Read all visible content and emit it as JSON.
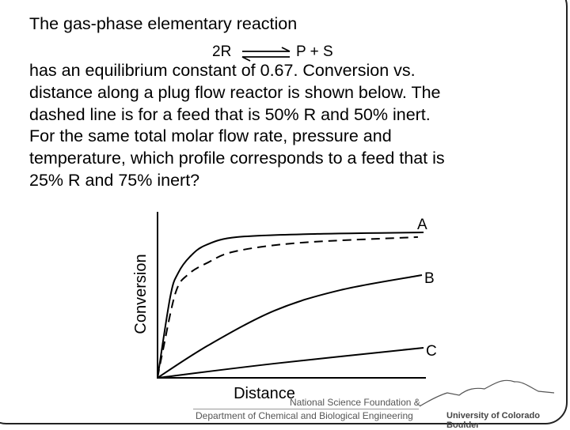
{
  "slide": {
    "line1": "The gas-phase elementary reaction",
    "reaction": {
      "left": "2R",
      "right": "P + S",
      "arrow": "equilibrium-arrows"
    },
    "paragraph": [
      "has an equilibrium constant of 0.67. Conversion vs.",
      "distance along a plug flow reactor is shown below. The",
      "dashed line is for a feed that is 50% R and 50% inert.",
      "For the same total molar flow rate, pressure and",
      "temperature, which profile corresponds to a feed that is",
      "25% R and 75% inert?"
    ]
  },
  "chart_data": {
    "type": "line",
    "title": "",
    "xlabel": "Distance",
    "ylabel": "Conversion",
    "xlim": [
      0,
      10
    ],
    "ylim": [
      0,
      1
    ],
    "grid": false,
    "series": [
      {
        "name": "A",
        "style": "solid",
        "x": [
          0,
          0.48,
          0.77,
          1.22,
          1.82,
          3.0,
          6.0,
          10
        ],
        "y": [
          0,
          0.49,
          0.63,
          0.73,
          0.8,
          0.848,
          0.867,
          0.876
        ]
      },
      {
        "name": "50% R feed",
        "style": "dashed",
        "x": [
          0,
          0.18,
          0.68,
          1.16,
          1.9,
          2.92,
          5.39,
          9.79
        ],
        "y": [
          0,
          0.148,
          0.514,
          0.624,
          0.695,
          0.762,
          0.814,
          0.848
        ]
      },
      {
        "name": "B",
        "style": "solid",
        "x": [
          0,
          1.9,
          4.4,
          6.88,
          9.94
        ],
        "y": [
          0,
          0.195,
          0.405,
          0.529,
          0.619
        ]
      },
      {
        "name": "C",
        "style": "solid",
        "x": [
          0,
          4.4,
          10
        ],
        "y": [
          0,
          0.086,
          0.181
        ]
      }
    ]
  },
  "footer": {
    "nsf": "National Science Foundation &",
    "dept": "Department of Chemical and Biological Engineering",
    "university": "University of Colorado Boulder"
  }
}
